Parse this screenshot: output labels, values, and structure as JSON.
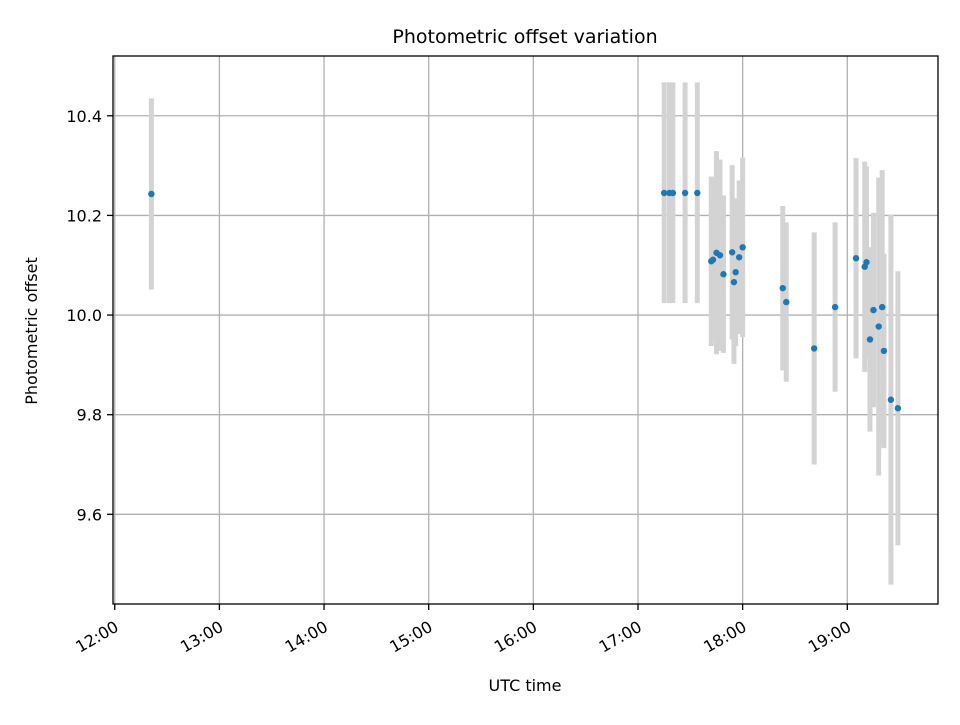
{
  "chart_data": {
    "type": "scatter",
    "title": "Photometric offset variation",
    "xlabel": "UTC time",
    "ylabel": "Photometric offset",
    "x_tick_labels": [
      "12:00",
      "13:00",
      "14:00",
      "15:00",
      "16:00",
      "17:00",
      "18:00",
      "19:00"
    ],
    "x_tick_hours": [
      12,
      13,
      14,
      15,
      16,
      17,
      18,
      19
    ],
    "y_tick_labels": [
      "9.6",
      "9.8",
      "10.0",
      "10.2",
      "10.4"
    ],
    "y_tick_values": [
      9.6,
      9.8,
      10.0,
      10.2,
      10.4
    ],
    "xlim": [
      "11:59",
      "19:52"
    ],
    "ylim": [
      9.42,
      10.52
    ],
    "grid": true,
    "marker_color": "#1f77b4",
    "errorbar_color": "#d3d3d3",
    "points": [
      {
        "x": "12:21",
        "y": 10.243,
        "ymin": 10.051,
        "ymax": 10.435
      },
      {
        "x": "17:15",
        "y": 10.245,
        "ymin": 10.024,
        "ymax": 10.467
      },
      {
        "x": "17:18",
        "y": 10.245,
        "ymin": 10.024,
        "ymax": 10.467
      },
      {
        "x": "17:20",
        "y": 10.245,
        "ymin": 10.024,
        "ymax": 10.467
      },
      {
        "x": "17:27",
        "y": 10.245,
        "ymin": 10.024,
        "ymax": 10.467
      },
      {
        "x": "17:34",
        "y": 10.245,
        "ymin": 10.024,
        "ymax": 10.467
      },
      {
        "x": "17:42",
        "y": 10.108,
        "ymin": 9.938,
        "ymax": 10.278
      },
      {
        "x": "17:43",
        "y": 10.111,
        "ymin": 9.947,
        "ymax": 10.275
      },
      {
        "x": "17:45",
        "y": 10.125,
        "ymin": 9.921,
        "ymax": 10.329
      },
      {
        "x": "17:47",
        "y": 10.12,
        "ymin": 9.928,
        "ymax": 10.312
      },
      {
        "x": "17:49",
        "y": 10.082,
        "ymin": 9.924,
        "ymax": 10.24
      },
      {
        "x": "17:54",
        "y": 10.126,
        "ymin": 9.951,
        "ymax": 10.301
      },
      {
        "x": "17:55",
        "y": 10.066,
        "ymin": 9.902,
        "ymax": 10.23
      },
      {
        "x": "17:56",
        "y": 10.086,
        "ymin": 9.938,
        "ymax": 10.234
      },
      {
        "x": "17:58",
        "y": 10.116,
        "ymin": 9.962,
        "ymax": 10.27
      },
      {
        "x": "18:00",
        "y": 10.136,
        "ymin": 9.956,
        "ymax": 10.316
      },
      {
        "x": "18:23",
        "y": 10.054,
        "ymin": 9.889,
        "ymax": 10.219
      },
      {
        "x": "18:25",
        "y": 10.026,
        "ymin": 9.866,
        "ymax": 10.186
      },
      {
        "x": "18:41",
        "y": 9.933,
        "ymin": 9.7,
        "ymax": 10.166
      },
      {
        "x": "18:53",
        "y": 10.016,
        "ymin": 9.846,
        "ymax": 10.186
      },
      {
        "x": "19:05",
        "y": 10.114,
        "ymin": 9.913,
        "ymax": 10.315
      },
      {
        "x": "19:10",
        "y": 10.097,
        "ymin": 9.886,
        "ymax": 10.308
      },
      {
        "x": "19:11",
        "y": 10.106,
        "ymin": 9.914,
        "ymax": 10.298
      },
      {
        "x": "19:13",
        "y": 9.951,
        "ymin": 9.766,
        "ymax": 10.136
      },
      {
        "x": "19:15",
        "y": 10.01,
        "ymin": 9.815,
        "ymax": 10.205
      },
      {
        "x": "19:18",
        "y": 9.977,
        "ymin": 9.678,
        "ymax": 10.276
      },
      {
        "x": "19:20",
        "y": 10.016,
        "ymin": 9.741,
        "ymax": 10.291
      },
      {
        "x": "19:21",
        "y": 9.928,
        "ymin": 9.733,
        "ymax": 10.123
      },
      {
        "x": "19:25",
        "y": 9.83,
        "ymin": 9.459,
        "ymax": 10.201
      },
      {
        "x": "19:29",
        "y": 9.813,
        "ymin": 9.538,
        "ymax": 10.088
      }
    ]
  }
}
